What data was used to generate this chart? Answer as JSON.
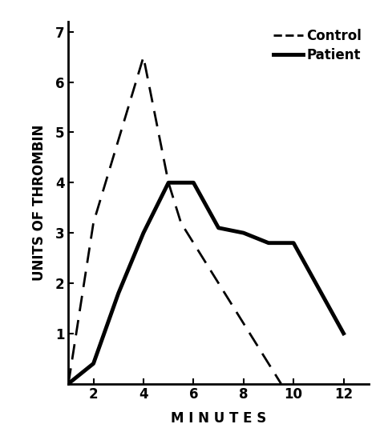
{
  "control_x": [
    1,
    2,
    4,
    5,
    5.5,
    9.5
  ],
  "control_y": [
    0,
    3.2,
    6.5,
    4.0,
    3.2,
    0
  ],
  "patient_x": [
    1,
    1.5,
    2,
    3,
    4,
    5,
    6,
    7,
    8,
    9,
    10,
    12
  ],
  "patient_y": [
    0,
    0.2,
    0.4,
    1.8,
    3.0,
    4.0,
    4.0,
    3.1,
    3.0,
    2.8,
    2.8,
    1.0
  ],
  "xlim": [
    1,
    13
  ],
  "ylim": [
    0,
    7.2
  ],
  "xticks": [
    2,
    4,
    6,
    8,
    10,
    12
  ],
  "yticks": [
    1,
    2,
    3,
    4,
    5,
    6,
    7
  ],
  "xlabel": "M I N U T E S",
  "ylabel": "UNITS OF THROMBIN",
  "legend_labels": [
    "Control",
    "Patient"
  ],
  "bg_color": "#ffffff",
  "line_color": "#000000",
  "linewidth_solid": 3.5,
  "linewidth_dashed": 2.0,
  "font_size_label": 12,
  "font_size_tick": 12,
  "font_size_legend": 12
}
